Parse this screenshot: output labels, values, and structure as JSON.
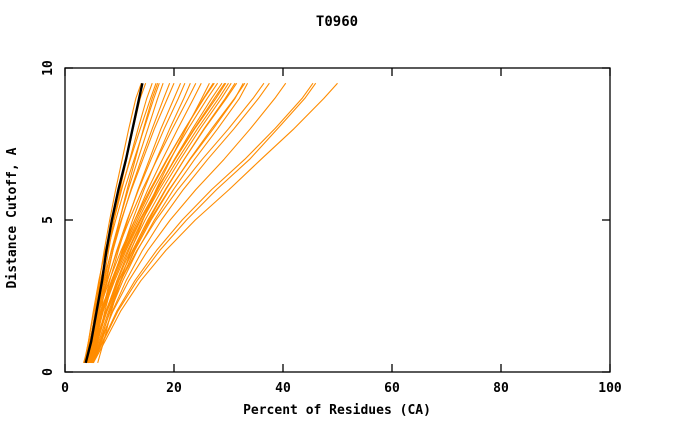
{
  "chart_data": {
    "type": "line",
    "title": "T0960",
    "xlabel": "Percent of Residues (CA)",
    "ylabel": "Distance Cutoff, A",
    "xlim": [
      0,
      100
    ],
    "ylim": [
      0,
      10
    ],
    "x_ticks": [
      0,
      20,
      40,
      60,
      80,
      100
    ],
    "y_ticks": [
      0,
      5,
      10
    ],
    "grid": false,
    "legend": "none",
    "colors": {
      "models": "#ff8c00",
      "highlight": "#000000",
      "axis": "#000000",
      "background": "#ffffff"
    },
    "y_samples": [
      0.3,
      1,
      2,
      3,
      4,
      5,
      6,
      7,
      8,
      9,
      9.5
    ],
    "highlight_series_x": [
      3.8,
      4.8,
      5.8,
      6.8,
      7.6,
      8.6,
      9.8,
      11.2,
      12.4,
      13.6,
      14.2
    ],
    "series_x": [
      [
        4.0,
        4.7,
        5.5,
        6.3,
        7.2,
        8.2,
        9.3,
        10.5,
        11.7,
        13.0,
        14.0
      ],
      [
        4.8,
        5.5,
        6.3,
        7.1,
        8.0,
        9.0,
        10.1,
        11.3,
        12.5,
        13.8,
        14.8
      ],
      [
        3.8,
        4.6,
        5.6,
        6.6,
        7.8,
        9.0,
        10.4,
        11.9,
        13.4,
        15.0,
        16.0
      ],
      [
        4.8,
        5.6,
        6.6,
        7.6,
        8.8,
        10.0,
        11.4,
        12.9,
        14.4,
        16.0,
        17.0
      ],
      [
        4.2,
        5.0,
        6.0,
        7.2,
        8.5,
        10.0,
        11.6,
        13.4,
        15.2,
        17.0,
        18.0
      ],
      [
        3.5,
        4.3,
        5.3,
        6.5,
        7.8,
        9.3,
        10.9,
        12.7,
        14.5,
        16.3,
        17.3
      ],
      [
        3.5,
        4.5,
        5.7,
        7.0,
        8.6,
        10.3,
        12.2,
        14.3,
        16.4,
        18.8,
        20.0
      ],
      [
        4.7,
        5.7,
        6.9,
        8.2,
        9.8,
        11.5,
        13.4,
        15.5,
        17.6,
        20.0,
        21.2
      ],
      [
        4.0,
        5.0,
        6.3,
        7.8,
        9.5,
        11.4,
        13.5,
        15.8,
        18.2,
        20.8,
        22.0
      ],
      [
        5.0,
        6.0,
        7.3,
        8.8,
        10.5,
        12.4,
        14.5,
        16.8,
        19.2,
        21.8,
        23.0
      ],
      [
        4.5,
        5.6,
        7.0,
        8.7,
        10.6,
        12.8,
        15.2,
        17.9,
        20.7,
        23.6,
        25.0
      ],
      [
        3.5,
        4.6,
        6.0,
        7.7,
        9.6,
        11.8,
        14.2,
        16.9,
        19.7,
        22.6,
        24.0
      ],
      [
        6.0,
        7.1,
        8.5,
        10.2,
        12.1,
        14.3,
        16.7,
        19.4,
        22.2,
        25.1,
        26.5
      ],
      [
        4.0,
        5.2,
        6.8,
        8.7,
        10.9,
        13.4,
        16.2,
        19.3,
        22.6,
        26.1,
        28.0
      ],
      [
        4.8,
        6.0,
        7.6,
        9.5,
        11.7,
        14.2,
        17.0,
        20.1,
        23.4,
        26.9,
        28.8
      ],
      [
        3.4,
        4.6,
        6.2,
        8.1,
        10.3,
        12.8,
        15.6,
        18.7,
        22.0,
        25.5,
        27.4
      ],
      [
        4.5,
        5.8,
        7.5,
        9.6,
        12.0,
        14.7,
        17.8,
        21.2,
        24.8,
        28.7,
        30.5
      ],
      [
        5.2,
        6.5,
        8.2,
        10.3,
        12.7,
        15.4,
        18.5,
        21.9,
        25.5,
        29.4,
        31.2
      ],
      [
        3.5,
        4.8,
        6.5,
        8.6,
        11.0,
        13.7,
        16.8,
        20.2,
        23.8,
        27.7,
        29.5
      ],
      [
        5.0,
        6.4,
        8.3,
        10.6,
        13.3,
        16.4,
        19.9,
        23.8,
        28.0,
        32.0,
        33.5
      ],
      [
        4.2,
        5.6,
        7.5,
        9.8,
        12.5,
        15.6,
        19.1,
        23.0,
        27.2,
        31.2,
        32.7
      ],
      [
        4.2,
        5.7,
        7.7,
        10.2,
        13.2,
        16.7,
        20.7,
        25.2,
        30.0,
        34.5,
        36.5
      ],
      [
        5.2,
        6.7,
        8.7,
        11.2,
        14.2,
        17.7,
        21.7,
        26.2,
        31.0,
        35.5,
        37.5
      ],
      [
        4.8,
        6.5,
        8.8,
        11.7,
        15.2,
        19.3,
        24.0,
        29.2,
        34.0,
        38.5,
        40.5
      ],
      [
        5.0,
        6.9,
        9.5,
        12.8,
        16.8,
        21.5,
        26.9,
        33.0,
        38.5,
        43.5,
        45.5
      ],
      [
        5.2,
        7.3,
        10.2,
        13.9,
        18.5,
        23.9,
        30.1,
        36.0,
        42.0,
        47.5,
        50.0
      ],
      [
        4.3,
        5.4,
        6.9,
        8.9,
        11.2,
        13.9,
        16.9,
        20.2,
        23.7,
        27.4,
        29.3
      ],
      [
        3.9,
        5.1,
        6.7,
        8.5,
        10.7,
        13.1,
        15.8,
        18.8,
        22.0,
        25.4,
        27.2
      ],
      [
        4.6,
        5.9,
        7.7,
        9.9,
        12.4,
        15.2,
        18.4,
        21.9,
        25.6,
        29.6,
        31.5
      ],
      [
        4.1,
        5.3,
        7.0,
        9.1,
        11.5,
        14.2,
        17.3,
        20.7,
        24.3,
        28.2,
        30.0
      ],
      [
        3.6,
        4.3,
        5.2,
        6.2,
        7.4,
        8.8,
        10.3,
        12.0,
        13.8,
        15.7,
        16.7
      ],
      [
        4.4,
        5.2,
        6.2,
        7.4,
        8.8,
        10.4,
        12.1,
        14.0,
        16.0,
        18.1,
        19.2
      ],
      [
        4.9,
        6.2,
        8.0,
        10.2,
        12.8,
        15.8,
        19.2,
        22.9,
        26.9,
        31.1,
        33.0
      ],
      [
        5.1,
        7.0,
        9.7,
        13.2,
        17.4,
        22.3,
        27.8,
        33.9,
        39.0,
        44.0,
        46.0
      ]
    ]
  }
}
